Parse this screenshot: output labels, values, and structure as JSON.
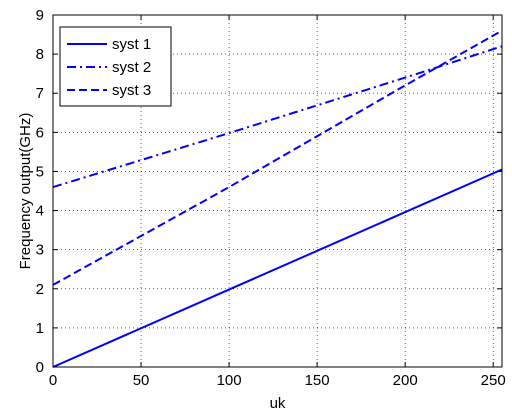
{
  "chart_data": {
    "type": "line",
    "title": "",
    "xlabel": "uk",
    "ylabel": "Frequency output(GHz)",
    "xlim": [
      0,
      255
    ],
    "ylim": [
      0,
      9
    ],
    "xticks": [
      0,
      50,
      100,
      150,
      200,
      250
    ],
    "yticks": [
      0,
      1,
      2,
      3,
      4,
      5,
      6,
      7,
      8,
      9
    ],
    "grid": true,
    "legend_position": "top-left",
    "series": [
      {
        "name": "syst 1",
        "style": "solid",
        "color": "#0000ff",
        "x": [
          0,
          255
        ],
        "y": [
          0,
          5.05
        ]
      },
      {
        "name": "syst 2",
        "style": "dashdot",
        "color": "#0000ff",
        "x": [
          0,
          100,
          200,
          255
        ],
        "y": [
          4.6,
          5.98,
          7.4,
          8.2
        ]
      },
      {
        "name": "syst 3",
        "style": "dashed",
        "color": "#0000ff",
        "x": [
          0,
          100,
          150,
          200,
          255
        ],
        "y": [
          2.1,
          4.6,
          5.9,
          7.2,
          8.6
        ]
      }
    ]
  }
}
